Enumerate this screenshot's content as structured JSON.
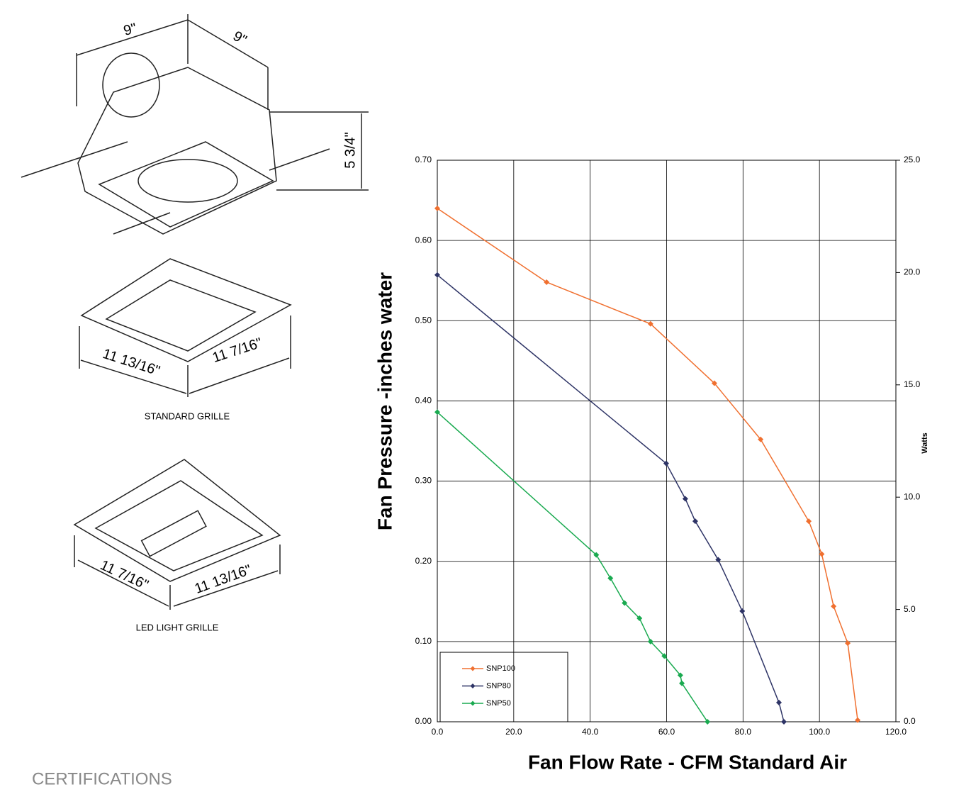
{
  "chart_data": {
    "type": "line",
    "xlabel": "Fan Flow Rate -   CFM Standard Air",
    "ylabel": "Fan Pressure -inches water",
    "y2label": "Watts",
    "xlim": [
      0,
      120
    ],
    "xticks": [
      {
        "value": 0,
        "label": "0.0"
      },
      {
        "value": 20,
        "label": "20.0"
      },
      {
        "value": 40,
        "label": "40.0"
      },
      {
        "value": 60,
        "label": "60.0"
      },
      {
        "value": 80,
        "label": "80.0"
      },
      {
        "value": 100,
        "label": "100.0"
      },
      {
        "value": 120,
        "label": "120.0"
      }
    ],
    "ylim": [
      0,
      0.7
    ],
    "yticks": [
      {
        "value": 0,
        "label": "0.00"
      },
      {
        "value": 0.1,
        "label": "0.10"
      },
      {
        "value": 0.2,
        "label": "0.20"
      },
      {
        "value": 0.3,
        "label": "0.30"
      },
      {
        "value": 0.4,
        "label": "0.40"
      },
      {
        "value": 0.5,
        "label": "0.50"
      },
      {
        "value": 0.6,
        "label": "0.60"
      },
      {
        "value": 0.7,
        "label": "0.70"
      }
    ],
    "y2lim": [
      0,
      25
    ],
    "y2ticks": [
      {
        "value": 0,
        "label": "0.0"
      },
      {
        "value": 5,
        "label": "5.0"
      },
      {
        "value": 10,
        "label": "10.0"
      },
      {
        "value": 15,
        "label": "15.0"
      },
      {
        "value": 20,
        "label": "20.0"
      },
      {
        "value": 25,
        "label": "25.0"
      }
    ],
    "grid": true,
    "legend": "lower left",
    "series": [
      {
        "name": "SNP100",
        "color": "#f07030",
        "x": [
          0,
          28.6,
          55.8,
          72.5,
          84.6,
          97.2,
          100.6,
          103.7,
          107.4,
          110.0
        ],
        "values": [
          0.64,
          0.548,
          0.496,
          0.422,
          0.352,
          0.25,
          0.209,
          0.144,
          0.098,
          0.002
        ]
      },
      {
        "name": "SNP80",
        "color": "#2e3466",
        "x": [
          0,
          59.9,
          64.9,
          67.5,
          73.5,
          79.8,
          89.4,
          90.7
        ],
        "values": [
          0.557,
          0.322,
          0.278,
          0.25,
          0.202,
          0.138,
          0.024,
          0
        ]
      },
      {
        "name": "SNP50",
        "color": "#1aaa50",
        "x": [
          0,
          41.6,
          45.3,
          49.0,
          52.9,
          55.8,
          59.4,
          63.6,
          64.0,
          70.7
        ],
        "values": [
          0.386,
          0.208,
          0.179,
          0.148,
          0.129,
          0.1,
          0.082,
          0.058,
          0.048,
          0
        ]
      }
    ]
  },
  "drawings": {
    "housing_width": "9\"",
    "housing_depth": "9\"",
    "housing_height": "5 3/4\"",
    "standard_grille": {
      "width": "11 13/16\"",
      "depth": "11 7/16\"",
      "caption": "STANDARD GRILLE"
    },
    "led_grille": {
      "width": "11 7/16\"",
      "depth": "11 13/16\"",
      "caption": "LED LIGHT GRILLE"
    },
    "section": "CERTIFICATIONS"
  }
}
